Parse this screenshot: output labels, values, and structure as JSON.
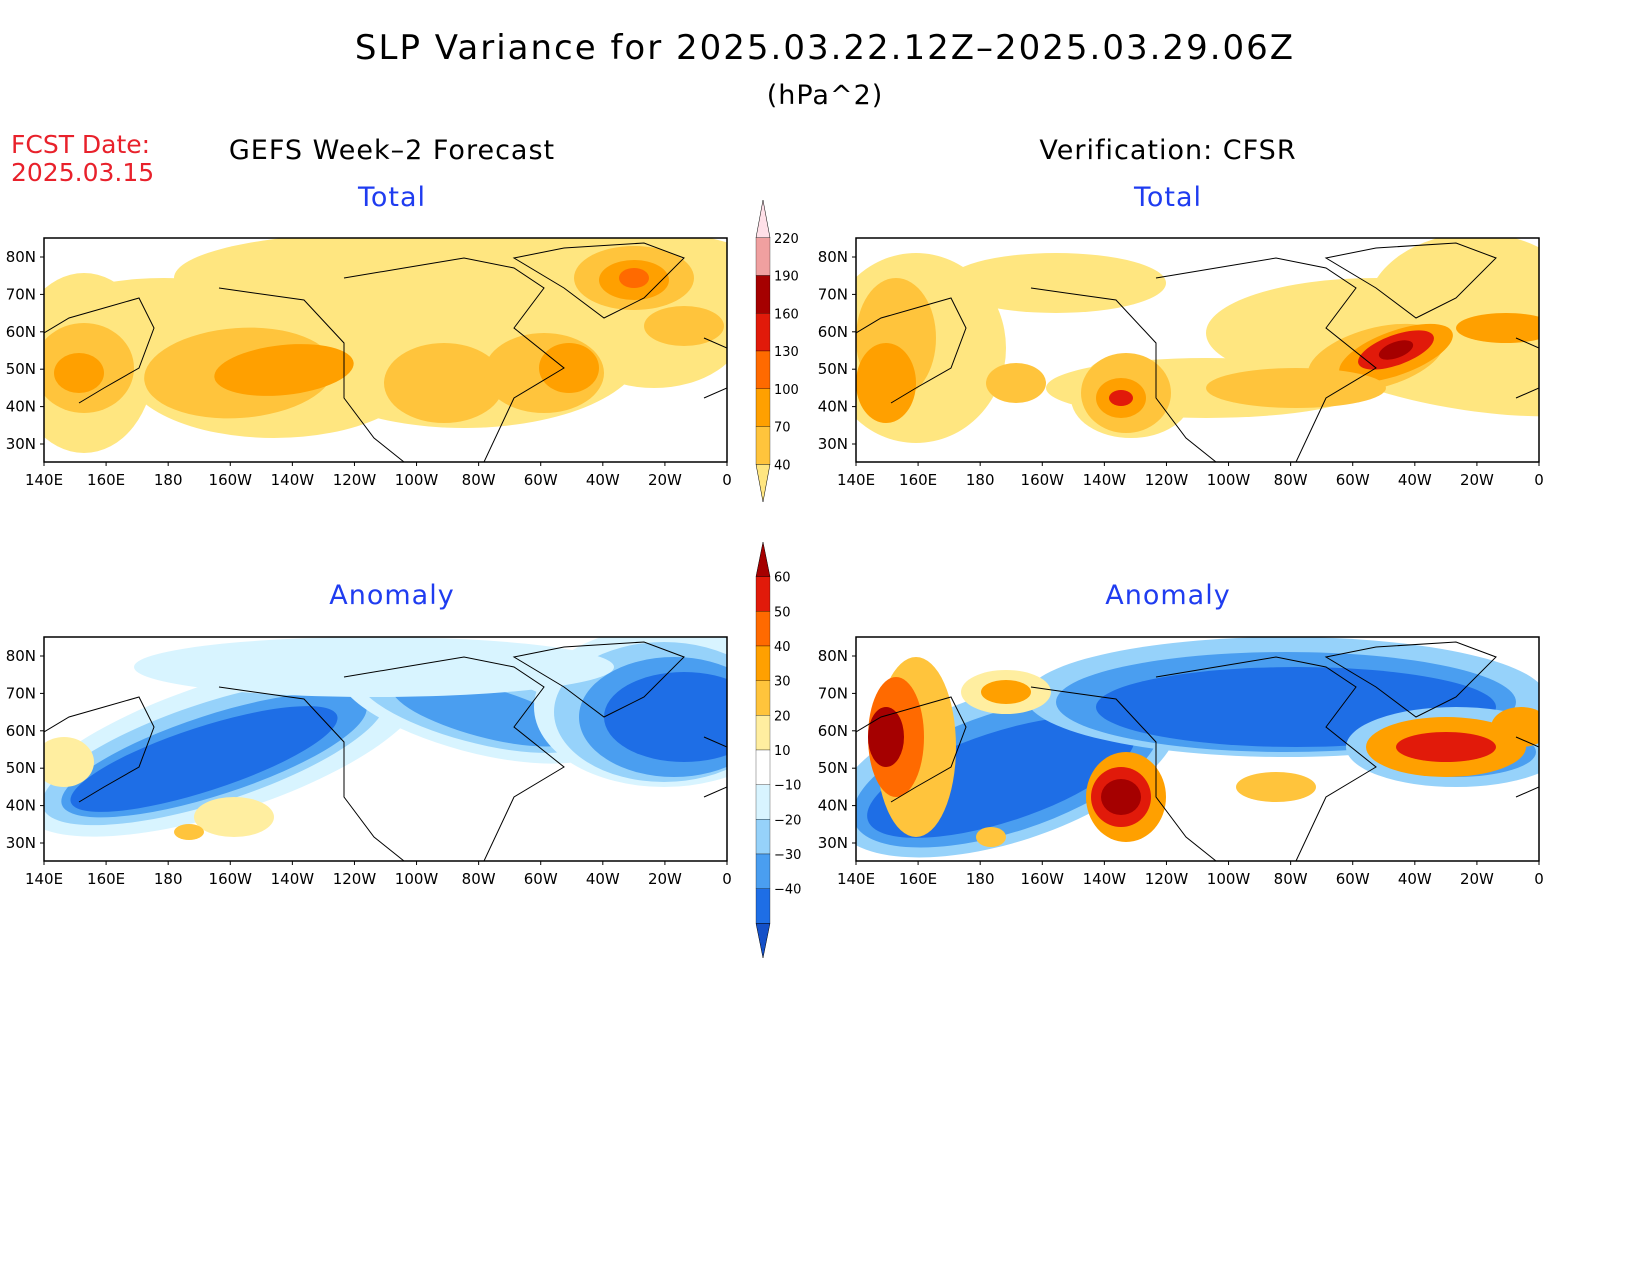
{
  "header": {
    "title": "SLP Variance for 2025.03.22.12Z–2025.03.29.06Z",
    "units": "(hPa^2)",
    "fcst_label": "FCST Date:",
    "fcst_date": "2025.03.15"
  },
  "columns": {
    "left": "GEFS Week–2 Forecast",
    "right": "Verification: CFSR"
  },
  "panels": {
    "top_left_label": "Total",
    "top_right_label": "Total",
    "bottom_left_label": "Anomaly",
    "bottom_right_label": "Anomaly"
  },
  "axes": {
    "lat_labels": [
      "80N",
      "70N",
      "60N",
      "50N",
      "40N",
      "30N"
    ],
    "lon_labels": [
      "140E",
      "160E",
      "180",
      "160W",
      "140W",
      "120W",
      "100W",
      "80W",
      "60W",
      "40W",
      "20W",
      "0"
    ]
  },
  "colorbars": {
    "total": {
      "levels": [
        "40",
        "70",
        "100",
        "130",
        "160",
        "190",
        "220"
      ],
      "colors": [
        "#ffe680",
        "#ffc43c",
        "#ffa000",
        "#ff6a00",
        "#e11a0a",
        "#a50000",
        "#f0a0a0",
        "#ffe0e8"
      ]
    },
    "anomaly": {
      "levels": [
        "60",
        "50",
        "40",
        "30",
        "20",
        "10",
        "−10",
        "−20",
        "−30",
        "−40"
      ],
      "colors": [
        "#a50000",
        "#e11a0a",
        "#ff6a00",
        "#ffa000",
        "#ffc43c",
        "#ffeea0",
        "#ffffff",
        "#d8f4ff",
        "#96d2fa",
        "#4a9ef0",
        "#1e6ee6",
        "#1450c8"
      ]
    }
  },
  "colors": {
    "title": "#000000",
    "fcst": "#e8212b",
    "panel_label": "#1f3cf0"
  }
}
